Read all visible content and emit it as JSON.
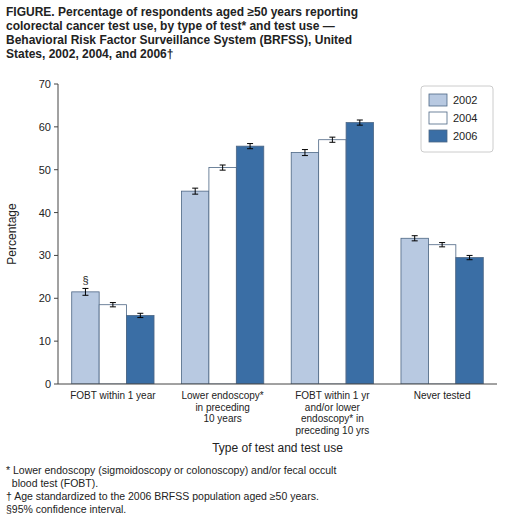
{
  "chart_data": {
    "type": "bar",
    "title": "FIGURE. Percentage of respondents aged ≥50 years reporting\ncolorectal cancer test use, by type of test* and test use —\nBehavioral Risk Factor Surveillance System (BRFSS), United\nStates, 2002, 2004, and 2006†",
    "categories": [
      "FOBT within 1 year",
      "Lower endoscopy*\nin preceding\n10 years",
      "FOBT within 1 yr\nand/or lower\nendoscopy* in\npreceding 10 yrs",
      "Never tested"
    ],
    "series": [
      {
        "name": "2002",
        "color": "#b8c9e1",
        "values": [
          21.5,
          45.0,
          54.0,
          34.0
        ],
        "errors": [
          0.8,
          0.7,
          0.7,
          0.6
        ]
      },
      {
        "name": "2004",
        "color": "#ffffff",
        "values": [
          18.5,
          50.5,
          57.0,
          32.5
        ],
        "errors": [
          0.5,
          0.6,
          0.6,
          0.5
        ]
      },
      {
        "name": "2006",
        "color": "#3a6ea5",
        "values": [
          16.0,
          55.5,
          61.0,
          29.5
        ],
        "errors": [
          0.5,
          0.6,
          0.6,
          0.5
        ]
      }
    ],
    "ylim": [
      0,
      70
    ],
    "yticks": [
      0,
      10,
      20,
      30,
      40,
      50,
      60,
      70
    ],
    "ylabel": "Percentage",
    "xlabel": "Type of test and test use",
    "legend": "upper right",
    "grid": false,
    "annotations": [
      {
        "text": "§",
        "series": "2002",
        "category": "FOBT within 1 year"
      }
    ],
    "footnote": "* Lower endoscopy (sigmoidoscopy or colonoscopy) and/or fecal occult\n  blood test (FOBT).\n† Age standardized to the 2006 BRFSS population aged ≥50 years.\n§95% confidence interval."
  }
}
